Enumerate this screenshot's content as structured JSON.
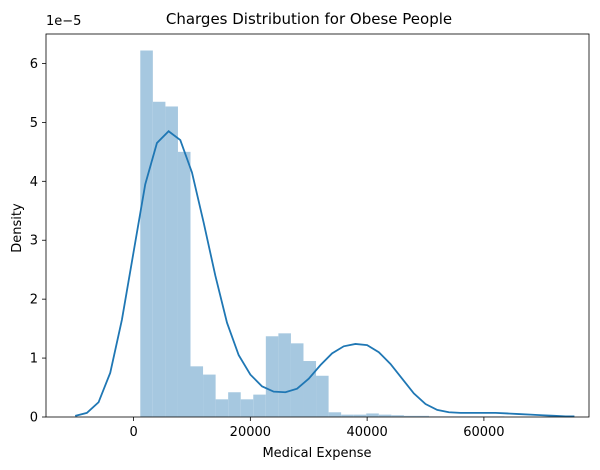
{
  "chart_data": {
    "type": "bar",
    "title": "Charges Distribution for Obese People",
    "xlabel": "Medical Expense",
    "ylabel": "Density",
    "y_multiplier_label": "1e−5",
    "xlim": [
      -15000,
      78000
    ],
    "ylim": [
      0,
      6.5
    ],
    "x_ticks": [
      0,
      20000,
      40000,
      60000
    ],
    "x_tick_labels": [
      "0",
      "20000",
      "40000",
      "60000"
    ],
    "y_ticks": [
      0,
      1,
      2,
      3,
      4,
      5,
      6
    ],
    "y_tick_labels": [
      "0",
      "1",
      "2",
      "3",
      "4",
      "5",
      "6"
    ],
    "bin_edges": [
      1150,
      3300,
      5450,
      7600,
      9750,
      11900,
      14050,
      16200,
      18350,
      20500,
      22650,
      24800,
      26950,
      29100,
      31250,
      33400,
      35550,
      37700,
      39850,
      42000,
      44150,
      46300,
      48450,
      50600,
      52750,
      54900,
      57050,
      59200,
      61350,
      63500
    ],
    "densities": [
      6.22,
      5.35,
      5.27,
      4.5,
      0.86,
      0.72,
      0.3,
      0.42,
      0.3,
      0.38,
      1.37,
      1.42,
      1.25,
      0.95,
      0.7,
      0.08,
      0.04,
      0.04,
      0.06,
      0.04,
      0.03,
      0.02,
      0.02,
      0.01,
      0.01,
      0.01,
      0.01,
      0.01,
      0.01
    ],
    "kde_x": [
      -10000,
      -8000,
      -6000,
      -4000,
      -2000,
      0,
      2000,
      4000,
      6000,
      8000,
      10000,
      12000,
      14000,
      16000,
      18000,
      20000,
      22000,
      24000,
      26000,
      28000,
      30000,
      32000,
      34000,
      36000,
      38000,
      40000,
      42000,
      44000,
      46000,
      48000,
      50000,
      52000,
      54000,
      56000,
      58000,
      60000,
      62000,
      64000,
      66000,
      68000,
      70000,
      72000,
      74000,
      75500
    ],
    "kde_y": [
      0.02,
      0.07,
      0.25,
      0.75,
      1.65,
      2.8,
      3.95,
      4.65,
      4.85,
      4.7,
      4.15,
      3.3,
      2.4,
      1.6,
      1.05,
      0.72,
      0.52,
      0.43,
      0.42,
      0.48,
      0.65,
      0.88,
      1.08,
      1.2,
      1.24,
      1.22,
      1.1,
      0.9,
      0.65,
      0.4,
      0.22,
      0.12,
      0.08,
      0.07,
      0.07,
      0.07,
      0.07,
      0.06,
      0.05,
      0.04,
      0.03,
      0.02,
      0.01,
      0.01
    ],
    "bar_color": "#a6c8e0",
    "line_color": "#1f77b4",
    "grid": false
  }
}
